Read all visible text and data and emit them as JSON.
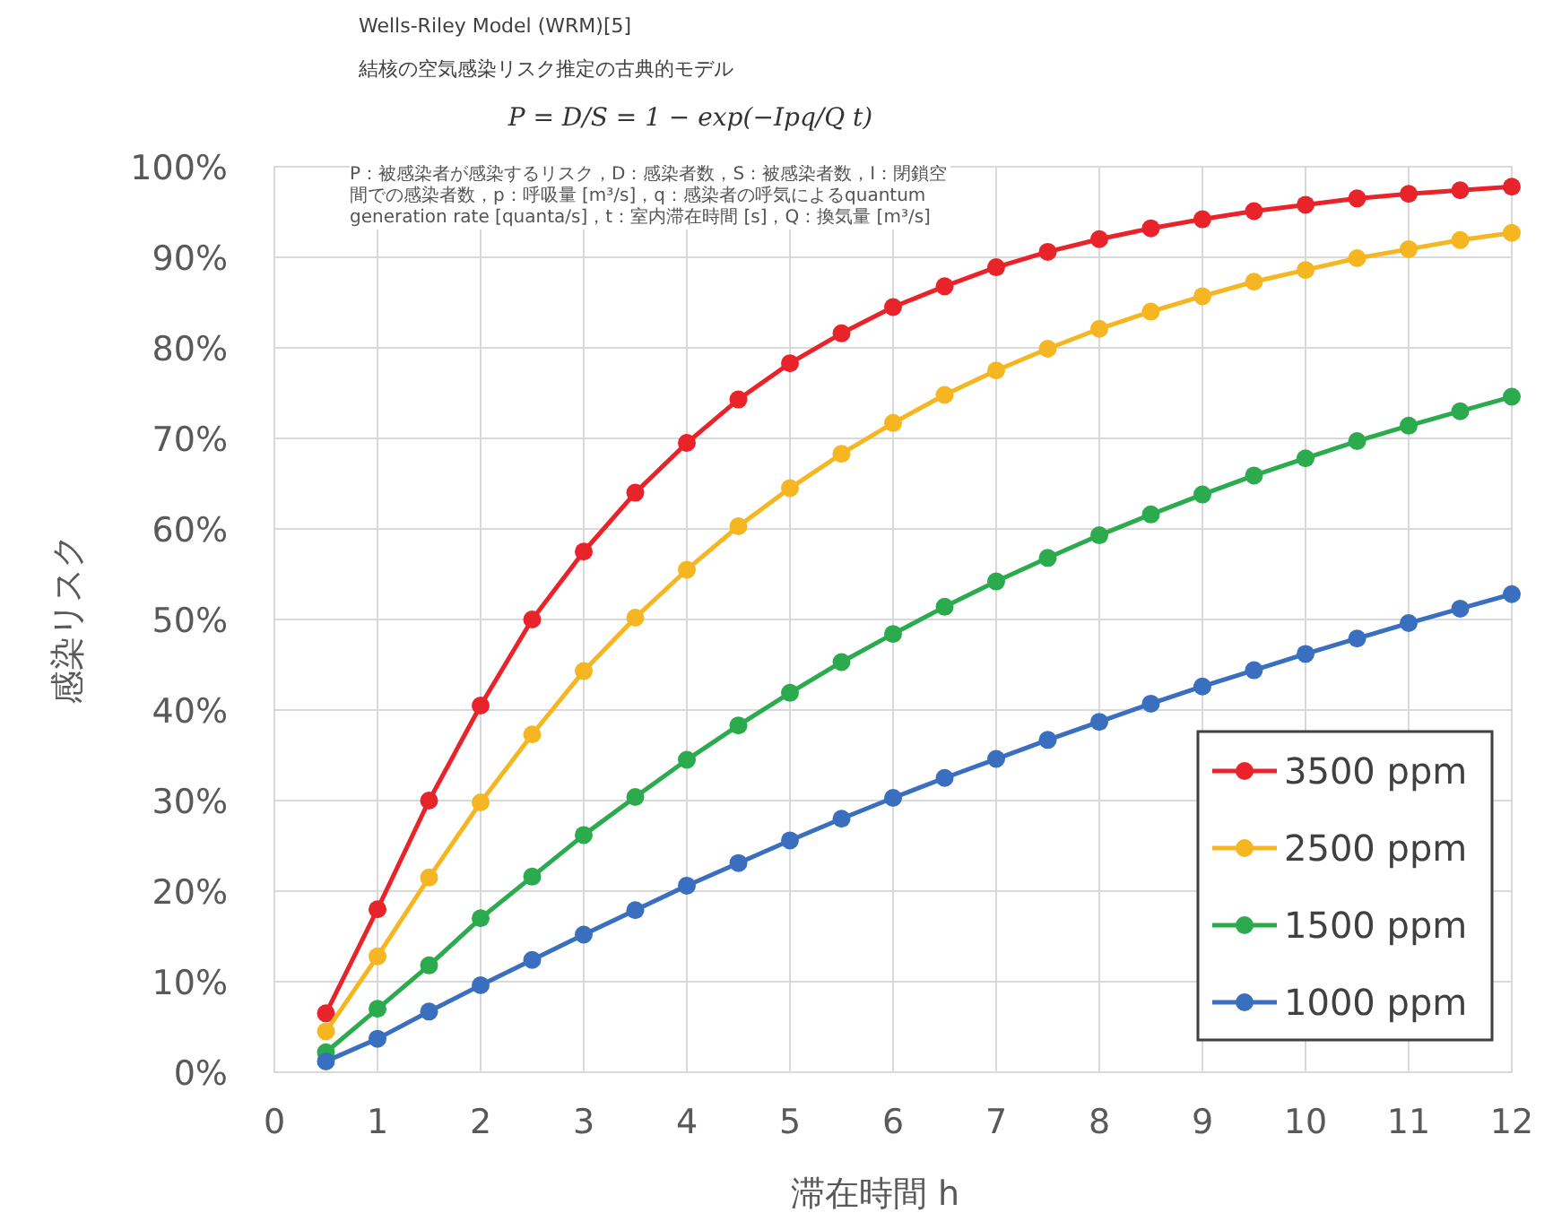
{
  "chart_data": {
    "type": "line",
    "title": "Wells-Riley Model (WRM)[5]",
    "subtitle": "結核の空気感染リスク推定の古典的モデル",
    "annotations": [
      "P = D/S = 1 − exp(−Ipq/Q t)",
      "P：被感染者が感染するリスク，D：感染者数，S：被感染者数，I：閉鎖空間での感染者数，p：呼吸量 [m³/s]，q：感染者の呼気によるquantum generation rate [quanta/s]，t：室内滞在時間 [s]，Q：換気量 [m³/s]"
    ],
    "xlabel": "滞在時間 h",
    "ylabel": "感染リスク",
    "x": [
      0.5,
      1,
      1.5,
      2,
      2.5,
      3,
      3.5,
      4,
      4.5,
      5,
      5.5,
      6,
      6.5,
      7,
      7.5,
      8,
      8.5,
      9,
      9.5,
      10,
      10.5,
      11,
      11.5,
      12
    ],
    "series": [
      {
        "name": "3500 ppm",
        "color": "#e8242a",
        "values": [
          6.5,
          18,
          30,
          40.5,
          50,
          57.5,
          64,
          69.5,
          74.3,
          78.3,
          81.6,
          84.5,
          86.8,
          88.9,
          90.6,
          92,
          93.2,
          94.2,
          95.1,
          95.8,
          96.5,
          97,
          97.4,
          97.8
        ]
      },
      {
        "name": "2500 ppm",
        "color": "#f5b622",
        "values": [
          4.5,
          12.8,
          21.5,
          29.8,
          37.3,
          44.3,
          50.2,
          55.5,
          60.3,
          64.5,
          68.3,
          71.7,
          74.8,
          77.5,
          79.9,
          82.1,
          84,
          85.7,
          87.3,
          88.6,
          89.9,
          90.9,
          91.9,
          92.7
        ]
      },
      {
        "name": "1500 ppm",
        "color": "#2bab4e",
        "values": [
          2.2,
          7,
          11.8,
          17,
          21.6,
          26.2,
          30.4,
          34.5,
          38.3,
          41.9,
          45.3,
          48.4,
          51.4,
          54.2,
          56.8,
          59.3,
          61.6,
          63.8,
          65.9,
          67.8,
          69.7,
          71.4,
          73,
          74.6
        ]
      },
      {
        "name": "1000 ppm",
        "color": "#3a6fc0",
        "values": [
          1.2,
          3.7,
          6.7,
          9.6,
          12.4,
          15.2,
          17.9,
          20.6,
          23.1,
          25.6,
          28,
          30.3,
          32.5,
          34.6,
          36.7,
          38.7,
          40.7,
          42.6,
          44.4,
          46.2,
          47.9,
          49.6,
          51.2,
          52.8
        ]
      }
    ],
    "xlim": [
      0,
      12
    ],
    "xticks": [
      0,
      1,
      2,
      3,
      4,
      5,
      6,
      7,
      8,
      9,
      10,
      11,
      12
    ],
    "ylim": [
      0,
      100
    ],
    "yticks": [
      {
        "value": 0,
        "label": "0%"
      },
      {
        "value": 10,
        "label": "10%"
      },
      {
        "value": 20,
        "label": "20%"
      },
      {
        "value": 30,
        "label": "30%"
      },
      {
        "value": 40,
        "label": "40%"
      },
      {
        "value": 50,
        "label": "50%"
      },
      {
        "value": 60,
        "label": "60%"
      },
      {
        "value": 70,
        "label": "70%"
      },
      {
        "value": 80,
        "label": "80%"
      },
      {
        "value": 90,
        "label": "90%"
      },
      {
        "value": 100,
        "label": "100%"
      }
    ],
    "grid": true,
    "legend": "bottom right",
    "marker": "circle",
    "line_style": "solid"
  }
}
